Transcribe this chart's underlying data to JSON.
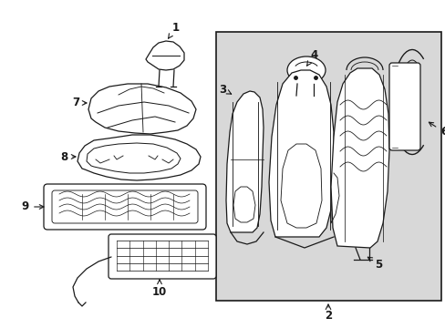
{
  "background_color": "#ffffff",
  "panel_bg": "#d8d8d8",
  "line_color": "#1a1a1a",
  "lw": 0.9
}
